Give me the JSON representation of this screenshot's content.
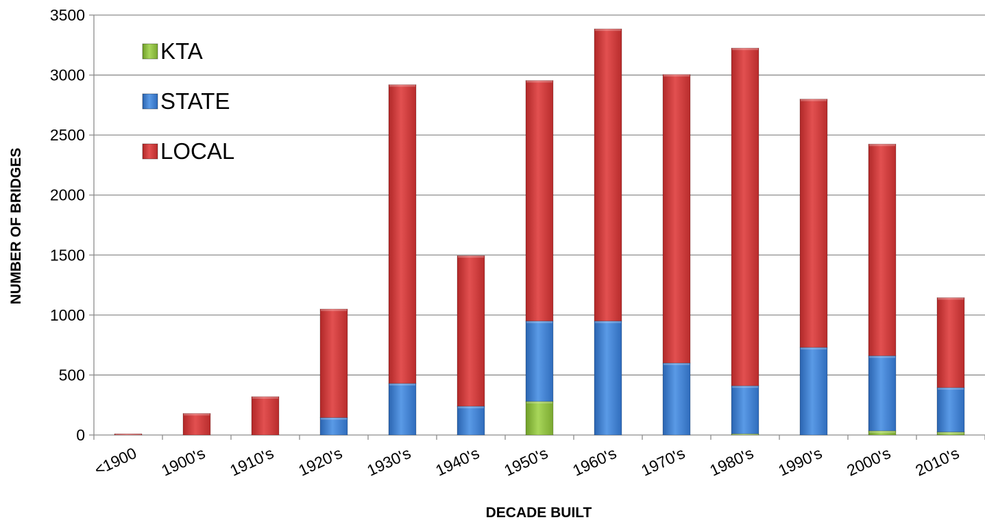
{
  "chart_data": {
    "type": "bar",
    "stacked": true,
    "title": "",
    "xlabel": "DECADE BUILT",
    "ylabel": "NUMBER OF BRIDGES",
    "ylim": [
      0,
      3500
    ],
    "yticks": [
      0,
      500,
      1000,
      1500,
      2000,
      2500,
      3000,
      3500
    ],
    "grid": true,
    "legend_position": "top-left",
    "categories": [
      "<1900",
      "1900's",
      "1910's",
      "1920's",
      "1930's",
      "1940's",
      "1950's",
      "1960's",
      "1970's",
      "1980's",
      "1990's",
      "2000's",
      "2010's"
    ],
    "series": [
      {
        "name": "KTA",
        "color": "#8fc43a",
        "values": [
          0,
          0,
          0,
          0,
          0,
          0,
          280,
          0,
          0,
          10,
          0,
          35,
          25
        ]
      },
      {
        "name": "STATE",
        "color": "#3d7fd4",
        "values": [
          0,
          0,
          0,
          145,
          430,
          240,
          670,
          950,
          600,
          400,
          730,
          625,
          370
        ]
      },
      {
        "name": "LOCAL",
        "color": "#d43a3a",
        "values": [
          10,
          180,
          320,
          905,
          2490,
          1255,
          2005,
          2435,
          2405,
          2815,
          2070,
          1765,
          750
        ]
      }
    ]
  }
}
